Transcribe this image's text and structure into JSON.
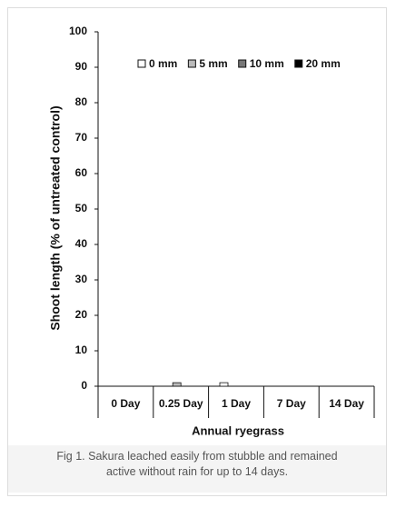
{
  "chart_data": {
    "type": "bar",
    "y_label": "Shoot length (% of untreated control)",
    "x_label": "Annual ryegrass",
    "categories": [
      "0 Day",
      "0.25 Day",
      "1 Day",
      "7 Day",
      "14 Day"
    ],
    "series": [
      {
        "name": "0 mm",
        "color": "#ffffff",
        "values": [
          0,
          0,
          1,
          0,
          0
        ]
      },
      {
        "name": "5 mm",
        "color": "#bbbbbb",
        "values": [
          0,
          1,
          0,
          0,
          0
        ]
      },
      {
        "name": "10 mm",
        "color": "#777777",
        "values": [
          0,
          0,
          0,
          0,
          0
        ]
      },
      {
        "name": "20 mm",
        "color": "#000000",
        "values": [
          0,
          0,
          0,
          0,
          0
        ]
      }
    ],
    "ylim": [
      0,
      100
    ],
    "yticks": [
      0,
      10,
      20,
      30,
      40,
      50,
      60,
      70,
      80,
      90,
      100
    ],
    "grid": false,
    "legend": "top"
  },
  "caption": "Fig 1. Sakura leached easily from stubble and remained active without rain for up to 14 days."
}
